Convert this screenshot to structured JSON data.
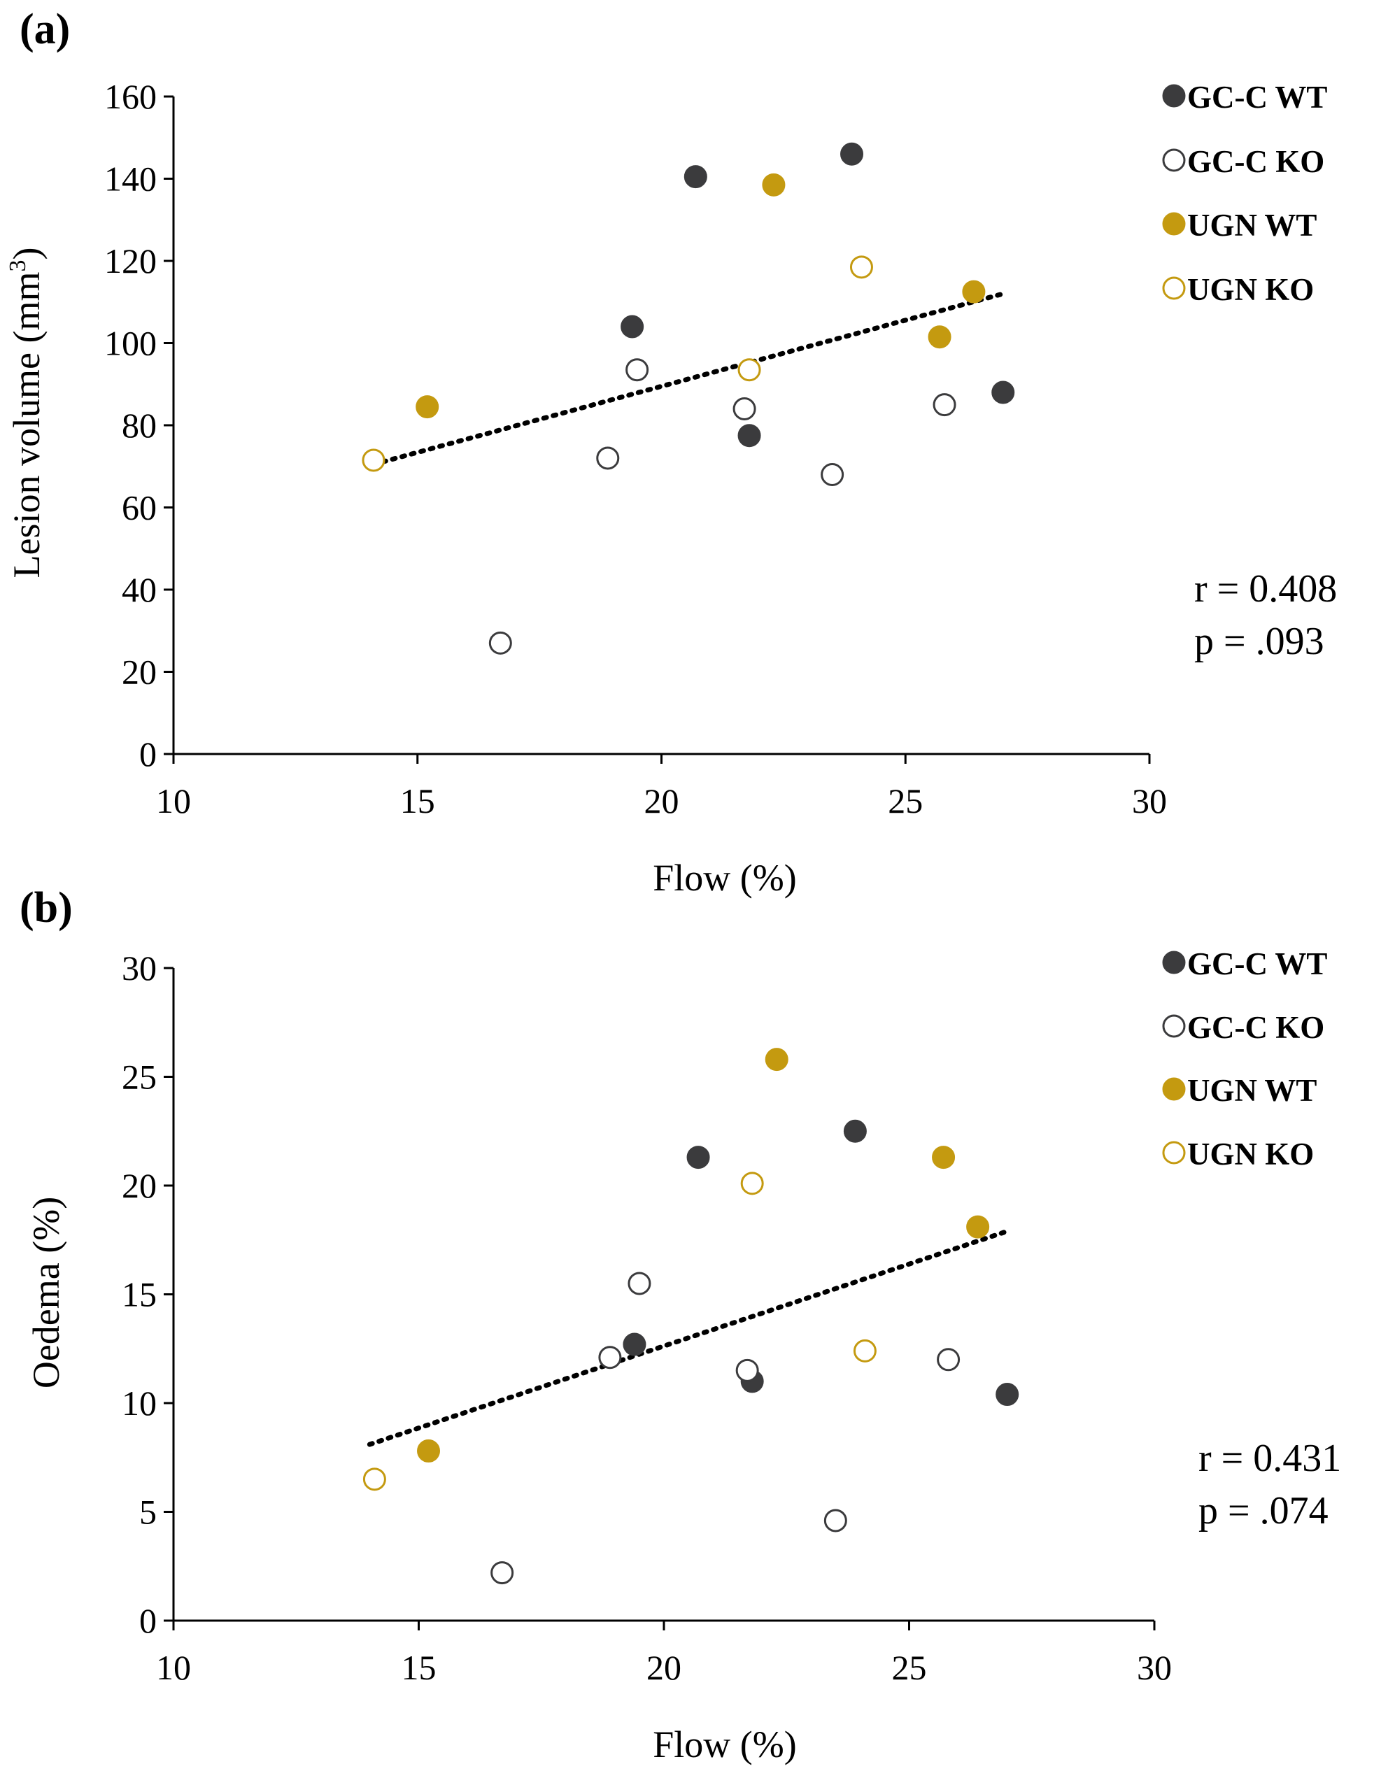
{
  "chart_data": [
    {
      "panel": "(a)",
      "type": "scatter",
      "xlabel": "Flow (%)",
      "ylabel": "Lesion volume (mm",
      "ylabel_sup": "3",
      "ylabel_close": ")",
      "xlim": [
        10,
        30
      ],
      "ylim": [
        0,
        160
      ],
      "xticks": [
        "10",
        "15",
        "20",
        "25",
        "30"
      ],
      "yticks": [
        "0",
        "20",
        "40",
        "60",
        "80",
        "100",
        "120",
        "140",
        "160"
      ],
      "legend_position": "top-right",
      "stats": [
        "r = 0.408",
        "p = .093"
      ],
      "trendline": {
        "x": [
          14.1,
          27.0
        ],
        "y": [
          70.5,
          112.0
        ]
      },
      "series": [
        {
          "name": "GC-C WT",
          "color": "#3b3b3d",
          "filled": true,
          "points": [
            [
              20.7,
              140.5
            ],
            [
              23.9,
              146.0
            ],
            [
              19.4,
              104.0
            ],
            [
              21.8,
              77.5
            ],
            [
              27.0,
              88.0
            ]
          ]
        },
        {
          "name": "GC-C KO",
          "color": "#3b3b3d",
          "filled": false,
          "points": [
            [
              16.7,
              27.0
            ],
            [
              18.9,
              72.0
            ],
            [
              19.5,
              93.5
            ],
            [
              21.7,
              84.0
            ],
            [
              23.5,
              68.0
            ],
            [
              25.8,
              85.0
            ]
          ]
        },
        {
          "name": "UGN WT",
          "color": "#c49a10",
          "filled": true,
          "points": [
            [
              15.2,
              84.5
            ],
            [
              22.3,
              138.5
            ],
            [
              25.7,
              101.5
            ],
            [
              26.4,
              112.5
            ]
          ]
        },
        {
          "name": "UGN KO",
          "color": "#c49a10",
          "filled": false,
          "points": [
            [
              14.1,
              71.5
            ],
            [
              21.8,
              93.5
            ],
            [
              24.1,
              118.5
            ]
          ]
        }
      ]
    },
    {
      "panel": "(b)",
      "type": "scatter",
      "xlabel": "Flow (%)",
      "ylabel": "Oedema (%)",
      "xlim": [
        10,
        30
      ],
      "ylim": [
        0,
        30
      ],
      "xticks": [
        "10",
        "15",
        "20",
        "25",
        "30"
      ],
      "yticks": [
        "0",
        "5",
        "10",
        "15",
        "20",
        "25",
        "30"
      ],
      "legend_position": "top-right",
      "stats": [
        "r = 0.431",
        "p = .074"
      ],
      "trendline": {
        "x": [
          14.0,
          27.0
        ],
        "y": [
          8.1,
          17.9
        ]
      },
      "series": [
        {
          "name": "GC-C WT",
          "color": "#3b3b3d",
          "filled": true,
          "points": [
            [
              20.7,
              21.3
            ],
            [
              23.9,
              22.5
            ],
            [
              19.4,
              12.7
            ],
            [
              21.8,
              11.0
            ],
            [
              27.0,
              10.4
            ]
          ]
        },
        {
          "name": "GC-C KO",
          "color": "#3b3b3d",
          "filled": false,
          "points": [
            [
              16.7,
              2.2
            ],
            [
              18.9,
              12.1
            ],
            [
              19.5,
              15.5
            ],
            [
              21.7,
              11.5
            ],
            [
              23.5,
              4.6
            ],
            [
              25.8,
              12.0
            ]
          ]
        },
        {
          "name": "UGN WT",
          "color": "#c49a10",
          "filled": true,
          "points": [
            [
              15.2,
              7.8
            ],
            [
              22.3,
              25.8
            ],
            [
              25.7,
              21.3
            ],
            [
              26.4,
              18.1
            ]
          ]
        },
        {
          "name": "UGN KO",
          "color": "#c49a10",
          "filled": false,
          "points": [
            [
              14.1,
              6.5
            ],
            [
              21.8,
              20.1
            ],
            [
              24.1,
              12.4
            ]
          ]
        }
      ]
    }
  ]
}
